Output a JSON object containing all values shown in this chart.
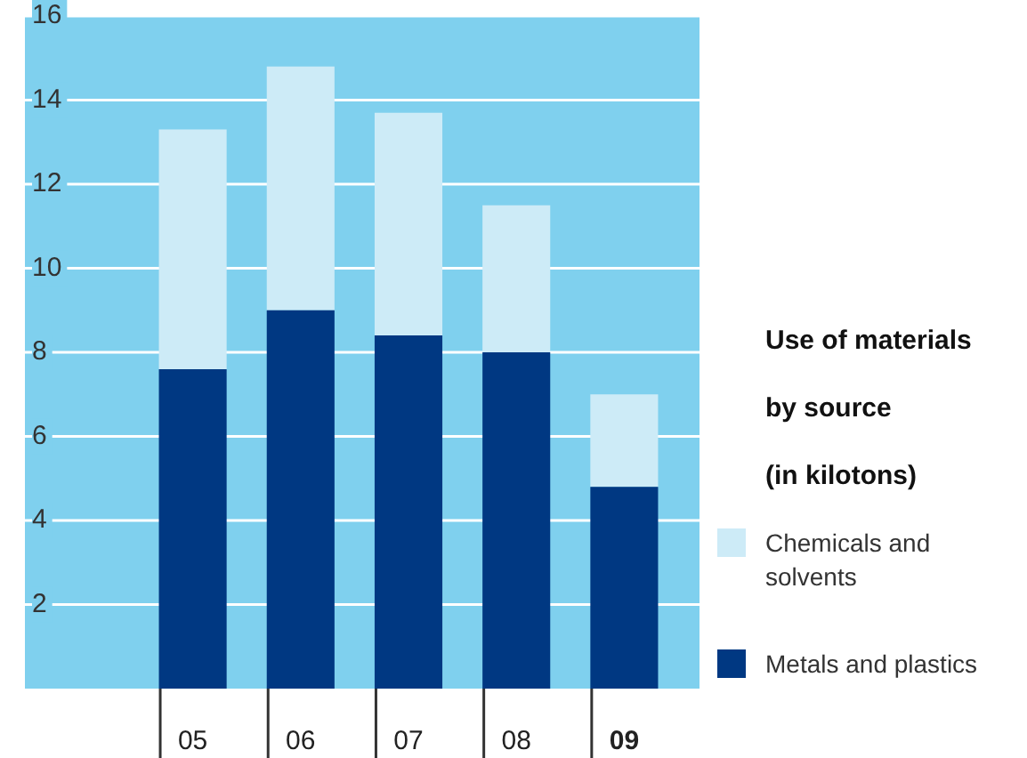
{
  "chart_data": {
    "type": "bar",
    "title": "Use of materials\nby source\n(in kilotons)",
    "categories": [
      "05",
      "06",
      "07",
      "08",
      "09"
    ],
    "series": [
      {
        "name": "Metals and plastics",
        "color": "#003882",
        "values": [
          7.6,
          9.0,
          8.4,
          8.0,
          4.8
        ]
      },
      {
        "name": "Chemicals and solvents",
        "color": "#cdebf7",
        "values": [
          5.7,
          5.8,
          5.3,
          3.5,
          2.2
        ]
      }
    ],
    "stacked": true,
    "ylim": [
      0,
      16
    ],
    "yticks": [
      2,
      4,
      6,
      8,
      10,
      12,
      14,
      16
    ],
    "grid": "y",
    "legend": "right"
  }
}
